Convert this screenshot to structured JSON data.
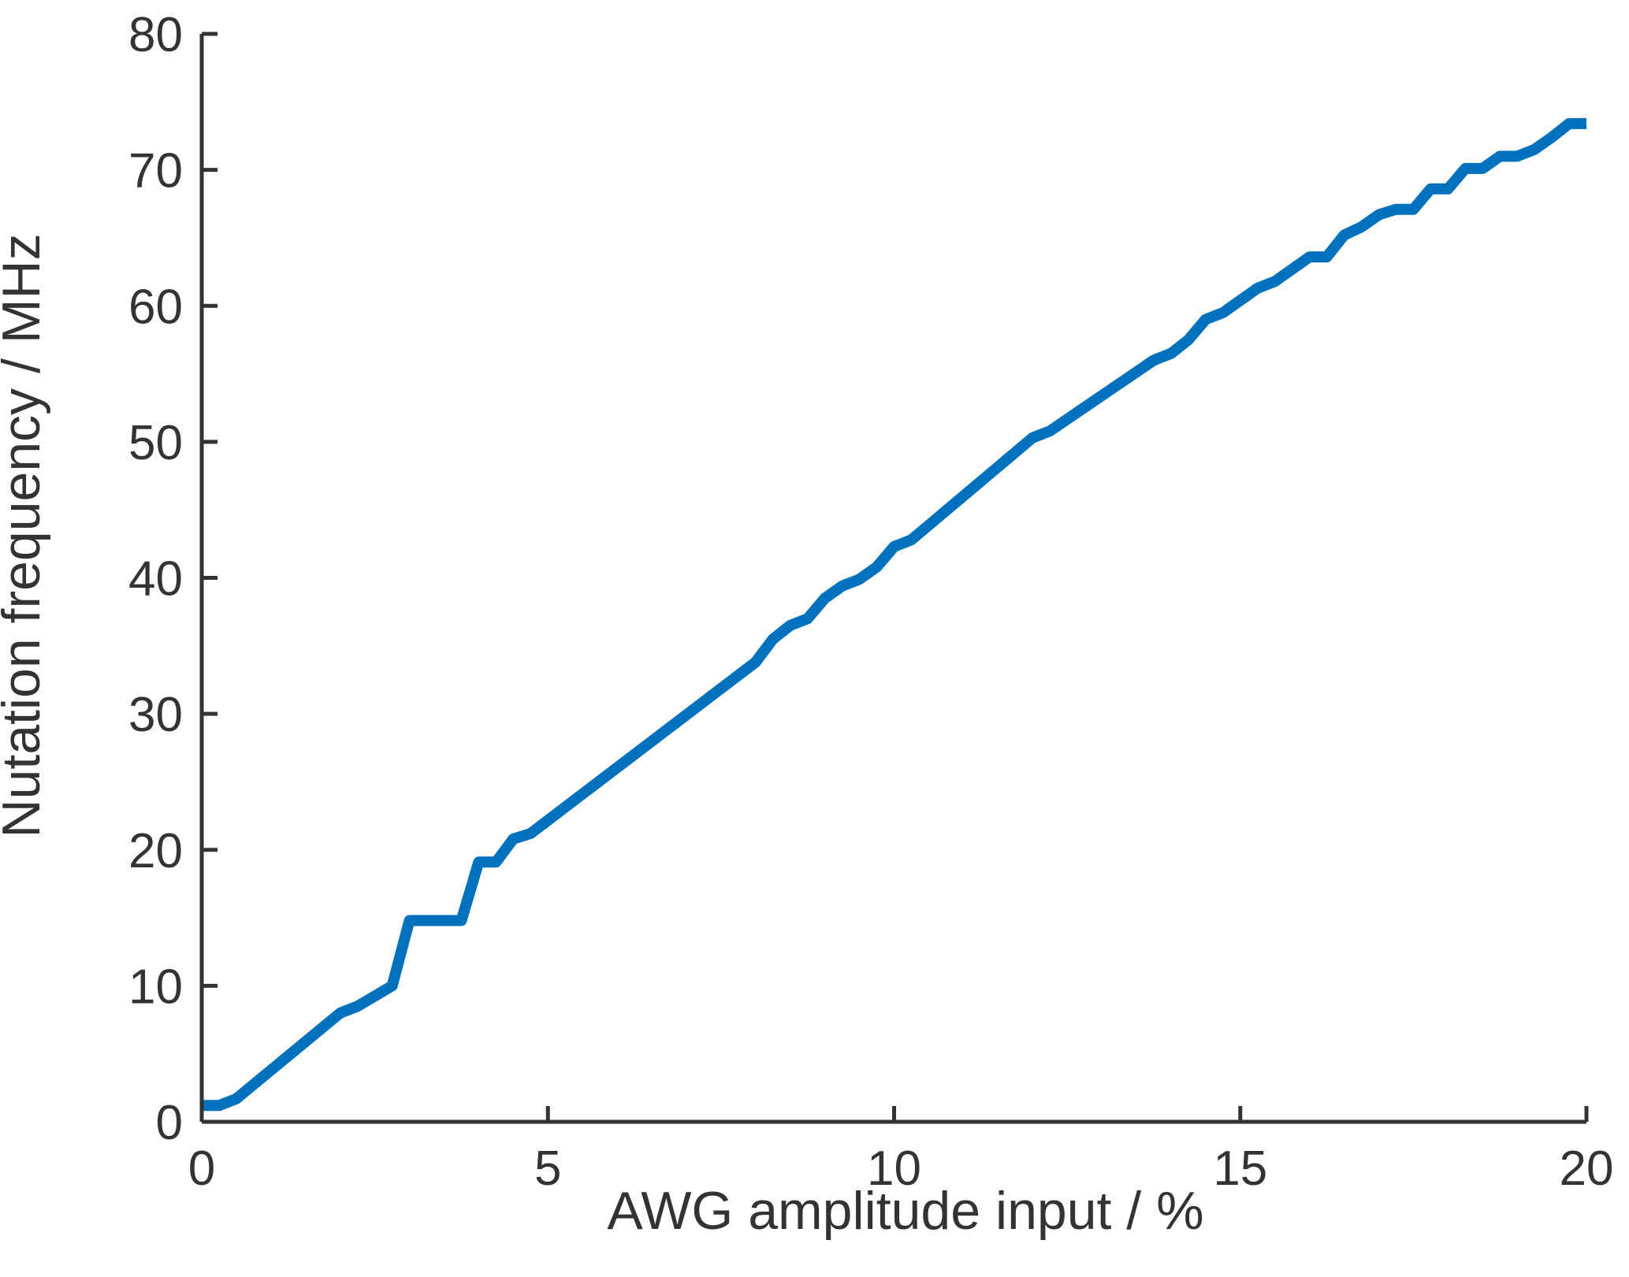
{
  "chart_data": {
    "type": "line",
    "title": "",
    "xlabel": "AWG amplitude input / %",
    "ylabel": "Nutation frequency  / MHz",
    "xlim": [
      0,
      20
    ],
    "ylim": [
      0,
      80
    ],
    "xticks": [
      0,
      5,
      10,
      15,
      20
    ],
    "xtick_labels": [
      "0",
      "5",
      "10",
      "15",
      "20"
    ],
    "yticks": [
      0,
      10,
      20,
      30,
      40,
      50,
      60,
      70,
      80
    ],
    "ytick_labels": [
      "0",
      "10",
      "20",
      "30",
      "40",
      "50",
      "60",
      "70",
      "80"
    ],
    "grid": false,
    "legend": "none",
    "series": [
      {
        "color": "#0072BD",
        "x": [
          0.0,
          0.25,
          0.5,
          2.0,
          2.25,
          2.75,
          3.0,
          3.75,
          4.0,
          4.25,
          4.5,
          4.75,
          8.0,
          8.25,
          8.5,
          8.75,
          9.0,
          9.25,
          9.5,
          9.75,
          10.0,
          10.25,
          12.0,
          12.25,
          13.75,
          14.0,
          14.25,
          14.5,
          14.75,
          15.25,
          15.5,
          16.0,
          16.25,
          16.5,
          16.75,
          17.0,
          17.25,
          17.5,
          17.75,
          18.0,
          18.25,
          18.5,
          18.75,
          19.0,
          19.25,
          19.5,
          19.75,
          20.0
        ],
        "y": [
          1.2,
          1.2,
          1.7,
          8.0,
          8.5,
          10.0,
          14.8,
          14.8,
          19.1,
          19.1,
          20.8,
          21.2,
          33.8,
          35.5,
          36.5,
          37.0,
          38.5,
          39.4,
          39.9,
          40.8,
          42.3,
          42.8,
          50.3,
          50.8,
          56.0,
          56.5,
          57.5,
          59.0,
          59.5,
          61.3,
          61.8,
          63.6,
          63.6,
          65.2,
          65.8,
          66.7,
          67.1,
          67.1,
          68.6,
          68.6,
          70.1,
          70.1,
          71.0,
          71.0,
          71.5,
          72.4,
          73.4,
          73.4
        ]
      }
    ]
  }
}
